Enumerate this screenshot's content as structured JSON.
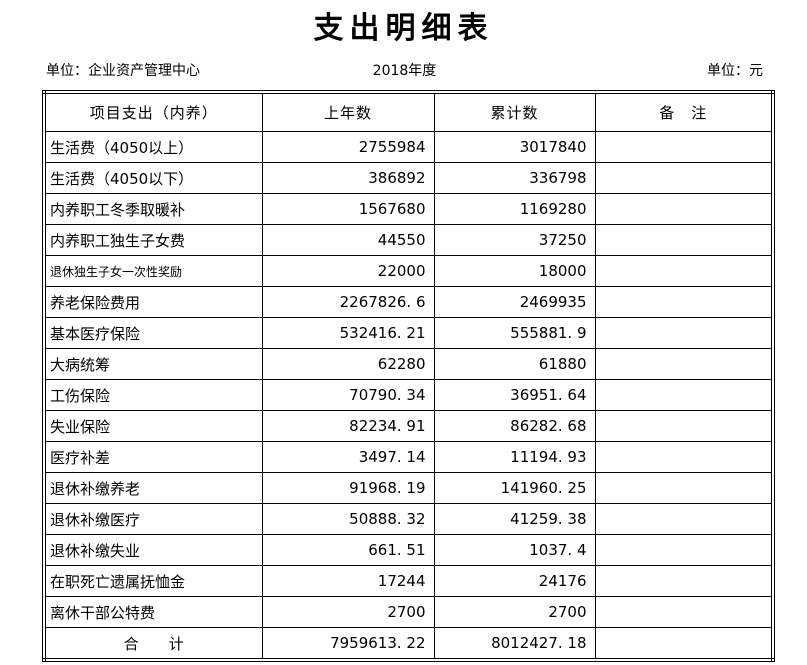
{
  "title": "支出明细表",
  "meta": {
    "org": "单位：企业资产管理中心",
    "year": "2018年度",
    "currency": "单位：元"
  },
  "table": {
    "headers": [
      "项目支出（内养）",
      "上年数",
      "累计数",
      "备　注"
    ],
    "rows": [
      {
        "label": "生活费（4050以上）",
        "prev": "2755984",
        "cumulative": "3017840",
        "remark": "",
        "small": false
      },
      {
        "label": "生活费（4050以下）",
        "prev": "386892",
        "cumulative": "336798",
        "remark": "",
        "small": false
      },
      {
        "label": "内养职工冬季取暖补",
        "prev": "1567680",
        "cumulative": "1169280",
        "remark": "",
        "small": false
      },
      {
        "label": "内养职工独生子女费",
        "prev": "44550",
        "cumulative": "37250",
        "remark": "",
        "small": false
      },
      {
        "label": "退休独生子女一次性奖励",
        "prev": "22000",
        "cumulative": "18000",
        "remark": "",
        "small": true
      },
      {
        "label": "养老保险费用",
        "prev": "2267826. 6",
        "cumulative": "2469935",
        "remark": "",
        "small": false
      },
      {
        "label": "基本医疗保险",
        "prev": "532416. 21",
        "cumulative": "555881. 9",
        "remark": "",
        "small": false
      },
      {
        "label": "大病统筹",
        "prev": "62280",
        "cumulative": "61880",
        "remark": "",
        "small": false
      },
      {
        "label": "工伤保险",
        "prev": "70790. 34",
        "cumulative": "36951. 64",
        "remark": "",
        "small": false
      },
      {
        "label": "失业保险",
        "prev": "82234. 91",
        "cumulative": "86282. 68",
        "remark": "",
        "small": false
      },
      {
        "label": "医疗补差",
        "prev": "3497. 14",
        "cumulative": "11194. 93",
        "remark": "",
        "small": false
      },
      {
        "label": "退休补缴养老",
        "prev": "91968. 19",
        "cumulative": "141960. 25",
        "remark": "",
        "small": false
      },
      {
        "label": "退休补缴医疗",
        "prev": "50888. 32",
        "cumulative": "41259. 38",
        "remark": "",
        "small": false
      },
      {
        "label": "退休补缴失业",
        "prev": "661. 51",
        "cumulative": "1037. 4",
        "remark": "",
        "small": false
      },
      {
        "label": "在职死亡遗属抚恤金",
        "prev": "17244",
        "cumulative": "24176",
        "remark": "",
        "small": false
      },
      {
        "label": "离休干部公特费",
        "prev": "2700",
        "cumulative": "2700",
        "remark": "",
        "small": false
      }
    ],
    "total": {
      "label": "合　　计",
      "prev": "7959613. 22",
      "cumulative": "8012427. 18",
      "remark": ""
    }
  },
  "colors": {
    "background": "#ffffff",
    "border": "#000000",
    "text": "#000000"
  }
}
